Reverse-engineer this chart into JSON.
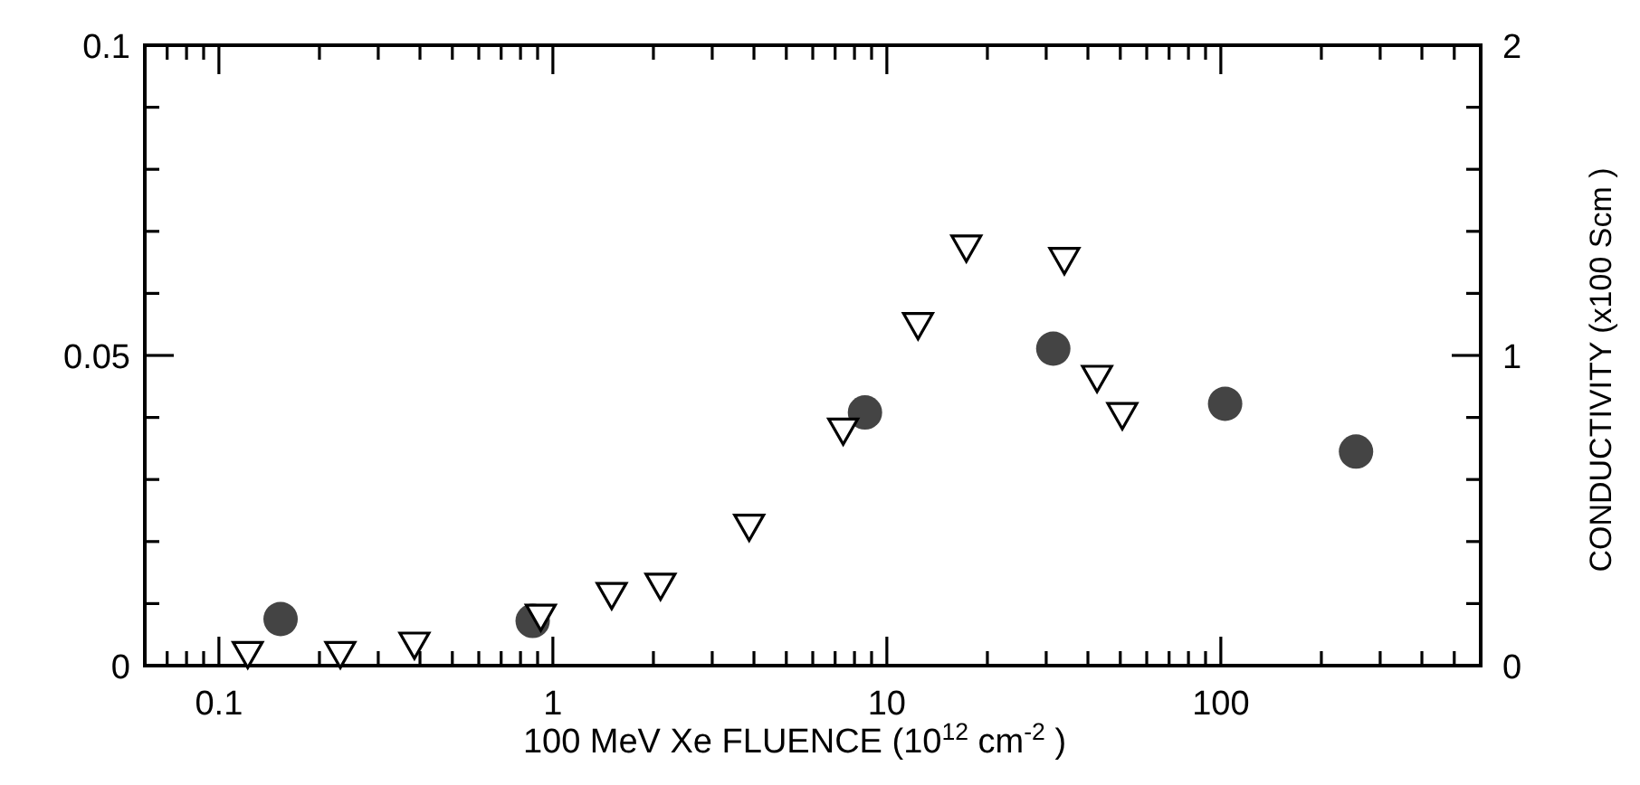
{
  "chart_data": {
    "type": "scatter",
    "xlabel": "100  MeV  Xe  FLUENCE  (10$^{12}$ cm$^{-2}$ )",
    "y2label": "CONDUCTIVITY (x100 Scm  )",
    "log": "x",
    "xlim": [
      0.06,
      600
    ],
    "xticks": [
      {
        "value": 0.06,
        "label": null
      },
      {
        "value": 0.07,
        "label": null
      },
      {
        "value": 0.08,
        "label": null
      },
      {
        "value": 0.09,
        "label": null
      },
      0.1,
      {
        "value": 0.2,
        "label": null
      },
      {
        "value": 0.3,
        "label": null
      },
      {
        "value": 0.4,
        "label": null
      },
      {
        "value": 0.5,
        "label": null
      },
      {
        "value": 0.6,
        "label": null
      },
      {
        "value": 0.7,
        "label": null
      },
      {
        "value": 0.8,
        "label": null
      },
      {
        "value": 0.9,
        "label": null
      },
      1,
      {
        "value": 2,
        "label": null
      },
      {
        "value": 3,
        "label": null
      },
      {
        "value": 4,
        "label": null
      },
      {
        "value": 5,
        "label": null
      },
      {
        "value": 6,
        "label": null
      },
      {
        "value": 7,
        "label": null
      },
      {
        "value": 8,
        "label": null
      },
      {
        "value": 9,
        "label": null
      },
      10,
      {
        "value": 20,
        "label": null
      },
      {
        "value": 30,
        "label": null
      },
      {
        "value": 40,
        "label": null
      },
      {
        "value": 50,
        "label": null
      },
      {
        "value": 60,
        "label": null
      },
      {
        "value": 70,
        "label": null
      },
      {
        "value": 80,
        "label": null
      },
      {
        "value": 90,
        "label": null
      },
      100,
      {
        "value": 200,
        "label": null
      },
      {
        "value": 300,
        "label": null
      },
      {
        "value": 400,
        "label": null
      },
      {
        "value": 500,
        "label": null
      },
      {
        "value": 600,
        "label": null
      }
    ],
    "ylim": [
      0,
      0.1
    ],
    "yticks": [
      0,
      {
        "value": 0.01,
        "label": null
      },
      {
        "value": 0.02,
        "label": null
      },
      {
        "value": 0.03,
        "label": null
      },
      {
        "value": 0.04,
        "label": null
      },
      0.05,
      {
        "value": 0.06,
        "label": null
      },
      {
        "value": 0.07,
        "label": null
      },
      {
        "value": 0.08,
        "label": null
      },
      {
        "value": 0.09,
        "label": null
      },
      0.1
    ],
    "y2lim": [
      0,
      2
    ],
    "y2ticks": [
      0,
      {
        "value": 0.2,
        "label": null
      },
      {
        "value": 0.4,
        "label": null
      },
      {
        "value": 0.6,
        "label": null
      },
      {
        "value": 0.8,
        "label": null
      },
      1,
      {
        "value": 1.2,
        "label": null
      },
      {
        "value": 1.4,
        "label": null
      },
      {
        "value": 1.6,
        "label": null
      },
      {
        "value": 1.8,
        "label": null
      },
      2
    ],
    "grid": false,
    "series": [
      {
        "color": "#444444",
        "marker": "circle",
        "x": [
          0.153,
          0.87,
          8.6,
          31.5,
          103,
          254
        ],
        "values": [
          0.0075,
          0.0072,
          0.0408,
          0.0511,
          0.0422,
          0.0345
        ]
      },
      {
        "color": "#000000",
        "marker": "triangle",
        "axis": "y2",
        "x": [
          0.122,
          0.231,
          0.385,
          0.92,
          1.5,
          2.1,
          3.87,
          7.4,
          12.4,
          17.3,
          34,
          42.6,
          50.7
        ],
        "values": [
          0.04,
          0.04,
          0.07,
          0.16,
          0.23,
          0.26,
          0.45,
          0.76,
          1.1,
          1.35,
          1.31,
          0.93,
          0.81
        ]
      }
    ]
  }
}
